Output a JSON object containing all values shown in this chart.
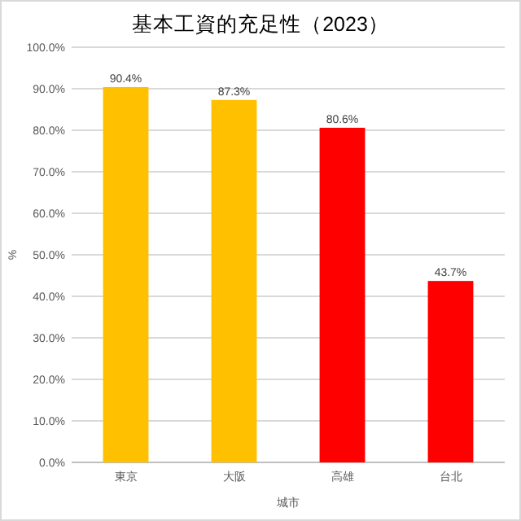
{
  "chart_data": {
    "type": "bar",
    "title": "基本工資的充足性（2023）",
    "xlabel": "城市",
    "ylabel": "%",
    "categories": [
      "東京",
      "大阪",
      "高雄",
      "台北"
    ],
    "values": [
      90.4,
      87.3,
      80.6,
      43.7
    ],
    "colors": [
      "#ffc000",
      "#ffc000",
      "#ff0000",
      "#ff0000"
    ],
    "value_labels": [
      "90.4%",
      "87.3%",
      "80.6%",
      "43.7%"
    ],
    "ylim": [
      0,
      100
    ],
    "yticks": [
      {
        "value": 0,
        "label": "0.0%"
      },
      {
        "value": 10,
        "label": "10.0%"
      },
      {
        "value": 20,
        "label": "20.0%"
      },
      {
        "value": 30,
        "label": "30.0%"
      },
      {
        "value": 40,
        "label": "40.0%"
      },
      {
        "value": 50,
        "label": "50.0%"
      },
      {
        "value": 60,
        "label": "60.0%"
      },
      {
        "value": 70,
        "label": "70.0%"
      },
      {
        "value": 80,
        "label": "80.0%"
      },
      {
        "value": 90,
        "label": "90.0%"
      },
      {
        "value": 100,
        "label": "100.0%"
      }
    ],
    "grid": "y"
  }
}
